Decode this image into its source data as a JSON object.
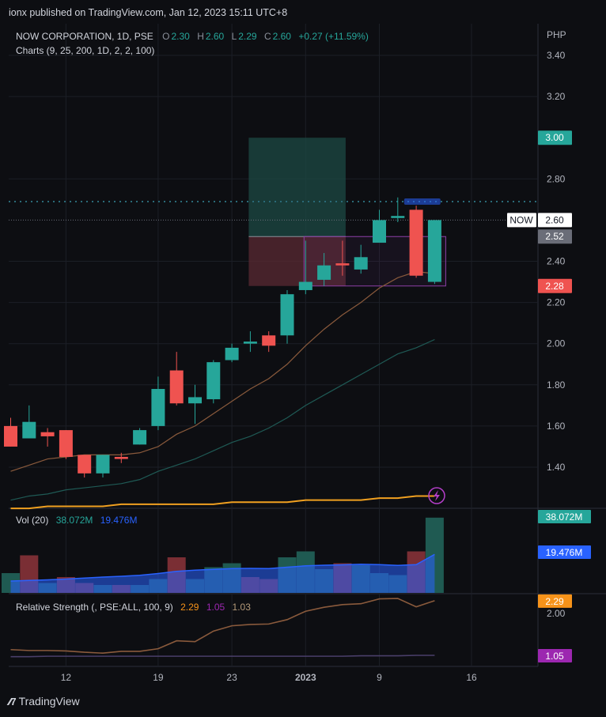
{
  "header": {
    "publisher_text": "ionx published on TradingView.com, Jan 12, 2023 15:11 UTC+8"
  },
  "legend": {
    "symbol": "NOW CORPORATION, 1D, PSE",
    "o_label": "O",
    "o": "2.30",
    "h_label": "H",
    "h": "2.60",
    "l_label": "L",
    "l": "2.29",
    "c_label": "C",
    "c": "2.60",
    "change": "+0.27 (+11.59%)",
    "indicator": "Charts (9, 25, 200, 1D, 2, 2, 100)"
  },
  "vol_legend": {
    "label": "Vol (20)",
    "v1": "38.072M",
    "v2": "19.476M"
  },
  "rs_legend": {
    "label": "Relative Strength (, PSE:ALL, 100, 9)",
    "v1": "2.29",
    "v2": "1.05",
    "v3": "1.03"
  },
  "brand": {
    "name": "TradingView"
  },
  "colors": {
    "up": "#26a69a",
    "down": "#ef5350",
    "background": "#0d0e12",
    "grid": "#1c1f26",
    "ma_fast": "#8a5a3c",
    "ma_mid": "#1f5a55",
    "ma_slow": "#f0a020",
    "vol_ma": "#2962ff",
    "rs_line": "#8a5a3c",
    "rs_ma": "#4a3f6a"
  },
  "chart_data": [
    {
      "type": "candlestick",
      "title": "NOW CORPORATION, 1D, PSE",
      "currency": "PHP",
      "ylim": [
        1.24,
        3.5
      ],
      "y_ticks": [
        3.4,
        3.2,
        2.8,
        2.4,
        2.2,
        2.0,
        1.8,
        1.6,
        1.4
      ],
      "x_ticks": [
        {
          "label": "12",
          "index": 3
        },
        {
          "label": "19",
          "index": 8
        },
        {
          "label": "23",
          "index": 12
        },
        {
          "label": "2023",
          "index": 16
        },
        {
          "label": "9",
          "index": 20
        },
        {
          "label": "16",
          "index": 25
        }
      ],
      "candles": [
        {
          "o": 1.6,
          "h": 1.64,
          "l": 1.5,
          "c": 1.5
        },
        {
          "o": 1.54,
          "h": 1.7,
          "l": 1.54,
          "c": 1.62
        },
        {
          "o": 1.57,
          "h": 1.59,
          "l": 1.5,
          "c": 1.55
        },
        {
          "o": 1.58,
          "h": 1.58,
          "l": 1.44,
          "c": 1.45
        },
        {
          "o": 1.46,
          "h": 1.46,
          "l": 1.35,
          "c": 1.37
        },
        {
          "o": 1.37,
          "h": 1.46,
          "l": 1.35,
          "c": 1.46
        },
        {
          "o": 1.45,
          "h": 1.47,
          "l": 1.42,
          "c": 1.44
        },
        {
          "o": 1.51,
          "h": 1.59,
          "l": 1.51,
          "c": 1.58
        },
        {
          "o": 1.6,
          "h": 1.84,
          "l": 1.58,
          "c": 1.78
        },
        {
          "o": 1.87,
          "h": 1.96,
          "l": 1.7,
          "c": 1.71
        },
        {
          "o": 1.71,
          "h": 1.8,
          "l": 1.61,
          "c": 1.74
        },
        {
          "o": 1.73,
          "h": 1.92,
          "l": 1.71,
          "c": 1.91
        },
        {
          "o": 1.92,
          "h": 2.0,
          "l": 1.91,
          "c": 1.98
        },
        {
          "o": 2.0,
          "h": 2.06,
          "l": 1.96,
          "c": 2.01
        },
        {
          "o": 2.04,
          "h": 2.06,
          "l": 1.96,
          "c": 1.99
        },
        {
          "o": 2.04,
          "h": 2.26,
          "l": 2.0,
          "c": 2.24
        },
        {
          "o": 2.26,
          "h": 2.5,
          "l": 2.24,
          "c": 2.3
        },
        {
          "o": 2.31,
          "h": 2.44,
          "l": 2.28,
          "c": 2.38
        },
        {
          "o": 2.39,
          "h": 2.5,
          "l": 2.33,
          "c": 2.38
        },
        {
          "o": 2.36,
          "h": 2.48,
          "l": 2.34,
          "c": 2.42
        },
        {
          "o": 2.49,
          "h": 2.65,
          "l": 2.49,
          "c": 2.6
        },
        {
          "o": 2.61,
          "h": 2.71,
          "l": 2.59,
          "c": 2.62
        },
        {
          "o": 2.65,
          "h": 2.67,
          "l": 2.32,
          "c": 2.33
        },
        {
          "o": 2.3,
          "h": 2.6,
          "l": 2.29,
          "c": 2.6
        }
      ],
      "ma_9": [
        1.38,
        1.41,
        1.44,
        1.45,
        1.46,
        1.46,
        1.46,
        1.47,
        1.5,
        1.56,
        1.6,
        1.66,
        1.72,
        1.78,
        1.83,
        1.9,
        1.99,
        2.07,
        2.14,
        2.2,
        2.27,
        2.32,
        2.35,
        2.34
      ],
      "ma_25": [
        1.24,
        1.26,
        1.27,
        1.29,
        1.3,
        1.31,
        1.32,
        1.34,
        1.38,
        1.41,
        1.44,
        1.48,
        1.52,
        1.55,
        1.59,
        1.64,
        1.7,
        1.75,
        1.8,
        1.85,
        1.9,
        1.95,
        1.98,
        2.02
      ],
      "ma_200": [
        1.2,
        1.2,
        1.21,
        1.21,
        1.21,
        1.21,
        1.22,
        1.22,
        1.22,
        1.22,
        1.22,
        1.22,
        1.23,
        1.23,
        1.23,
        1.23,
        1.24,
        1.24,
        1.24,
        1.24,
        1.25,
        1.25,
        1.26,
        1.26
      ],
      "resistance_level": 2.69,
      "position_box": {
        "start_index": 13,
        "end_index": 18,
        "entry": 2.52,
        "target": 3.0,
        "stop": 2.28
      },
      "consolidation_box": {
        "start_index": 16,
        "end_index": 23,
        "top": 2.52,
        "bottom": 2.28
      },
      "price_tags": [
        {
          "label": "3.00",
          "value": 3.0,
          "color": "#26a69a"
        },
        {
          "label": "2.60",
          "value": 2.6,
          "color": "#ffffff",
          "prefix": "NOW"
        },
        {
          "label": "2.52",
          "value": 2.52,
          "color": "#6a6d78"
        },
        {
          "label": "2.28",
          "value": 2.28,
          "color": "#ef5350"
        }
      ]
    },
    {
      "type": "bar",
      "title": "Vol (20)",
      "values": [
        10,
        19,
        5,
        8,
        5,
        4,
        4,
        4,
        7,
        18,
        7,
        13,
        15,
        8,
        7,
        18,
        21,
        12,
        15,
        14,
        10,
        9,
        21,
        38.072
      ],
      "directions": [
        "up",
        "down",
        "up",
        "down",
        "down",
        "up",
        "down",
        "up",
        "up",
        "down",
        "up",
        "up",
        "up",
        "down",
        "down",
        "up",
        "up",
        "up",
        "down",
        "up",
        "up",
        "up",
        "down",
        "up"
      ],
      "ma_values": [
        6.0,
        6.3,
        6.6,
        7.0,
        7.5,
        8.0,
        8.4,
        8.9,
        9.8,
        10.9,
        11.5,
        11.9,
        12.3,
        12.4,
        12.3,
        13.0,
        13.7,
        14.0,
        14.2,
        14.5,
        14.3,
        13.9,
        14.3,
        19.476
      ],
      "tags": [
        {
          "label": "38.072M",
          "color": "#26a69a"
        },
        {
          "label": "19.476M",
          "color": "#2962ff"
        }
      ]
    },
    {
      "type": "line",
      "title": "Relative Strength (, PSE:ALL, 100, 9)",
      "y_ticks": [
        2.0
      ],
      "rs": [
        1.18,
        1.16,
        1.16,
        1.15,
        1.12,
        1.1,
        1.14,
        1.14,
        1.2,
        1.38,
        1.36,
        1.6,
        1.72,
        1.75,
        1.76,
        1.86,
        2.05,
        2.14,
        2.2,
        2.22,
        2.33,
        2.34,
        2.15,
        2.29
      ],
      "rs_ma": [
        1.02,
        1.02,
        1.03,
        1.03,
        1.03,
        1.03,
        1.03,
        1.03,
        1.03,
        1.03,
        1.03,
        1.03,
        1.03,
        1.03,
        1.03,
        1.03,
        1.03,
        1.03,
        1.03,
        1.04,
        1.04,
        1.04,
        1.05,
        1.05
      ],
      "tags": [
        {
          "label": "2.29",
          "value": 2.29,
          "color": "#f7931a"
        },
        {
          "label": "1.05",
          "value": 1.05,
          "color": "#9c27b0"
        }
      ]
    }
  ]
}
